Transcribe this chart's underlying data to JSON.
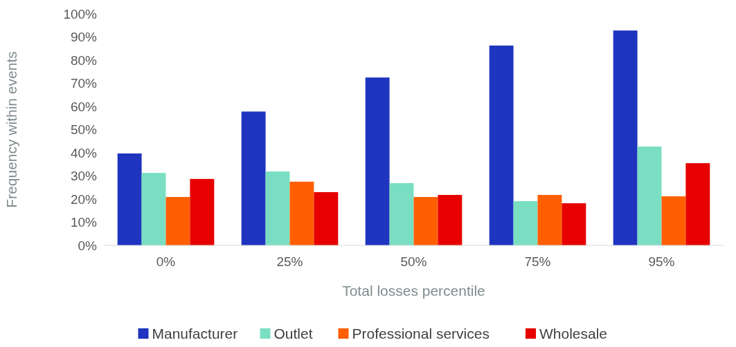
{
  "chart_data": {
    "type": "bar",
    "xlabel": "Total losses percentile",
    "ylabel": "Frequency within events",
    "categories": [
      "0%",
      "25%",
      "50%",
      "75%",
      "95%"
    ],
    "series": [
      {
        "name": "Manufacturer",
        "color": "#1f35c0",
        "values": [
          39.7,
          57.8,
          72.5,
          86.3,
          92.8
        ]
      },
      {
        "name": "Outlet",
        "color": "#7adfc2",
        "values": [
          31.3,
          31.9,
          26.9,
          19.1,
          42.7
        ]
      },
      {
        "name": "Professional services",
        "color": "#ff5f00",
        "values": [
          20.9,
          27.5,
          20.9,
          21.8,
          21.2
        ]
      },
      {
        "name": "Wholesale",
        "color": "#e60000",
        "values": [
          28.7,
          23,
          21.8,
          18.2,
          35.5
        ]
      }
    ],
    "ylim": [
      0,
      100
    ],
    "yticks": [
      {
        "value": 0,
        "label": "0%"
      },
      {
        "value": 10,
        "label": "10%"
      },
      {
        "value": 20,
        "label": "20%"
      },
      {
        "value": 30,
        "label": "30%"
      },
      {
        "value": 40,
        "label": "40%"
      },
      {
        "value": 50,
        "label": "50%"
      },
      {
        "value": 60,
        "label": "60%"
      },
      {
        "value": 70,
        "label": "70%"
      },
      {
        "value": 80,
        "label": "80%"
      },
      {
        "value": 90,
        "label": "90%"
      },
      {
        "value": 100,
        "label": "100%"
      }
    ],
    "grid": false,
    "legend": "bottom"
  }
}
